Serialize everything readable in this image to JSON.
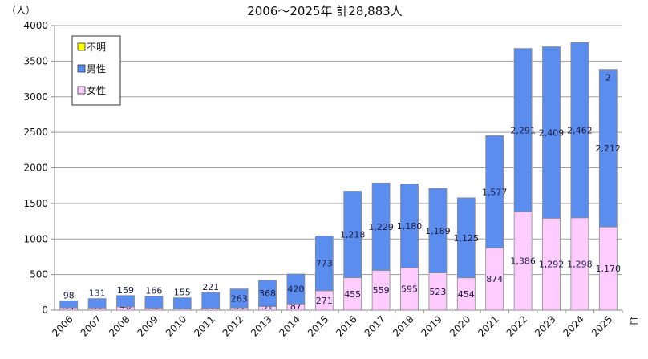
{
  "chart_data": {
    "type": "bar",
    "stacked": true,
    "title": "2006～2025年  計28,883人",
    "ylabel": "（人）",
    "xlabel": "年",
    "ylim": [
      0,
      4000
    ],
    "yticks": [
      0,
      500,
      1000,
      1500,
      2000,
      2500,
      3000,
      3500,
      4000
    ],
    "grid": true,
    "legend_position": "top-left",
    "categories": [
      "2006",
      "2007",
      "2008",
      "2009",
      "2010",
      "2011",
      "2012",
      "2013",
      "2014",
      "2015",
      "2016",
      "2017",
      "2018",
      "2019",
      "2020",
      "2021",
      "2022",
      "2023",
      "2024",
      "2025"
    ],
    "series": [
      {
        "name": "女性",
        "color": "#ffccff",
        "values": [
          34,
          31,
          46,
          30,
          18,
          27,
          34,
          51,
          87,
          271,
          455,
          559,
          595,
          523,
          454,
          874,
          1386,
          1292,
          1298,
          1170
        ],
        "labels": [
          "34",
          "31",
          "46",
          "30",
          "18",
          "27",
          "34",
          "51",
          "87",
          "271",
          "455",
          "559",
          "595",
          "523",
          "454",
          "874",
          "1,386",
          "1,292",
          "1,298",
          "1,170"
        ]
      },
      {
        "name": "男性",
        "color": "#5b8def",
        "values": [
          98,
          131,
          159,
          166,
          155,
          221,
          263,
          368,
          420,
          773,
          1218,
          1229,
          1180,
          1189,
          1125,
          1577,
          2291,
          2409,
          2462,
          2212
        ],
        "labels": [
          "98",
          "131",
          "159",
          "166",
          "155",
          "221",
          "263",
          "368",
          "420",
          "773",
          "1,218",
          "1,229",
          "1,180",
          "1,189",
          "1,125",
          "1,577",
          "2,291",
          "2,409",
          "2,462",
          "2,212"
        ]
      },
      {
        "name": "不明",
        "color": "#ffff00",
        "values": [
          0,
          0,
          0,
          0,
          0,
          0,
          0,
          0,
          0,
          0,
          0,
          0,
          0,
          0,
          0,
          0,
          0,
          0,
          0,
          2
        ],
        "labels": [
          "",
          "",
          "",
          "",
          "",
          "",
          "",
          "",
          "",
          "",
          "",
          "",
          "",
          "",
          "",
          "",
          "",
          "",
          "",
          "2"
        ]
      }
    ]
  }
}
